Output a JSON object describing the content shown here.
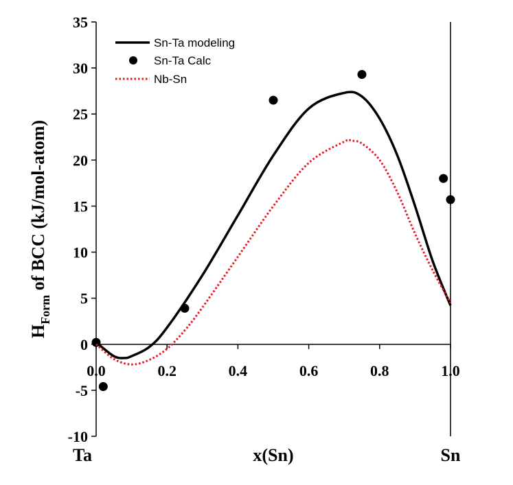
{
  "chart_data": {
    "type": "line",
    "xlabel": "x(Sn)",
    "ylabel": {
      "main": "H",
      "sub": "Form",
      "rest": " of BCC (kJ/mol-atom)"
    },
    "xlim": [
      0,
      1
    ],
    "ylim": [
      -10,
      35
    ],
    "x_ticks": [
      "0.0",
      "0.2",
      "0.4",
      "0.6",
      "0.8",
      "1.0"
    ],
    "y_ticks": [
      "-10",
      "-5",
      "0",
      "5",
      "10",
      "15",
      "20",
      "25",
      "30",
      "35"
    ],
    "end_labels": {
      "left": "Ta",
      "right": "Sn"
    },
    "grid": false,
    "legend_position": "top-left",
    "series": [
      {
        "name": "Sn-Ta modeling",
        "style": "solid",
        "color": "#000000",
        "x": [
          0,
          0.05,
          0.08,
          0.1,
          0.15,
          0.2,
          0.3,
          0.4,
          0.5,
          0.6,
          0.7,
          0.75,
          0.8,
          0.85,
          0.9,
          0.95,
          1.0
        ],
        "y": [
          0.2,
          -1.3,
          -1.5,
          -1.3,
          -0.3,
          1.8,
          7.5,
          14.0,
          20.5,
          25.6,
          27.3,
          26.9,
          24.5,
          20.5,
          15.0,
          9.0,
          4.2
        ]
      },
      {
        "name": "Sn-Ta Calc",
        "style": "points",
        "color": "#000000",
        "x": [
          0.0,
          0.02,
          0.25,
          0.5,
          0.75,
          0.98,
          1.0
        ],
        "y": [
          0.2,
          -4.6,
          3.9,
          26.5,
          29.3,
          18.0,
          15.7
        ]
      },
      {
        "name": "Nb-Sn",
        "style": "dotted",
        "color": "#e8141c",
        "x": [
          0,
          0.05,
          0.1,
          0.15,
          0.2,
          0.25,
          0.3,
          0.4,
          0.5,
          0.6,
          0.7,
          0.72,
          0.75,
          0.8,
          0.85,
          0.9,
          0.95,
          1.0
        ],
        "y": [
          0.0,
          -1.6,
          -2.2,
          -1.7,
          -0.5,
          1.5,
          4.0,
          9.5,
          15.0,
          19.7,
          22.0,
          22.1,
          21.8,
          20.0,
          16.5,
          12.0,
          8.0,
          4.5
        ]
      }
    ]
  }
}
